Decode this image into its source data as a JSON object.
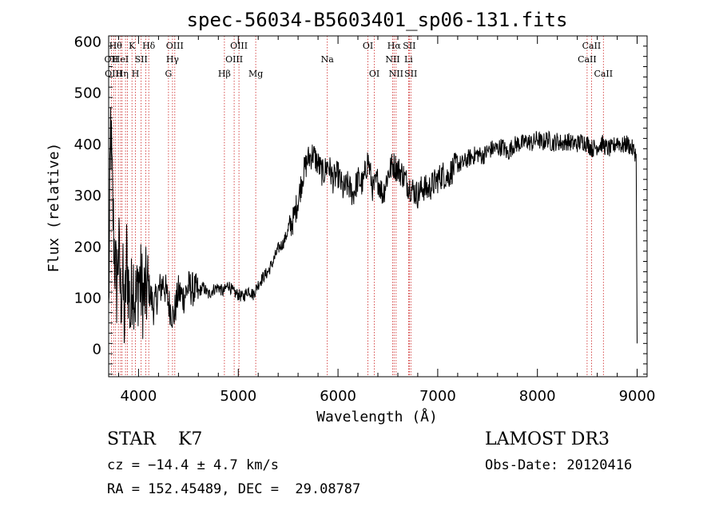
{
  "chart_data": {
    "type": "line",
    "title": "spec-56034-B5603401_sp06-131.fits",
    "xlabel": "Wavelength (Å)",
    "ylabel": "Flux (relative)",
    "xlim": [
      3700,
      9100
    ],
    "ylim": [
      -55,
      610
    ],
    "xticks": [
      4000,
      5000,
      6000,
      7000,
      8000,
      9000
    ],
    "yticks": [
      0,
      100,
      200,
      300,
      400,
      500,
      600
    ],
    "series": [
      {
        "name": "flux",
        "x": [
          3700,
          3720,
          3740,
          3760,
          3780,
          3800,
          3820,
          3840,
          3860,
          3880,
          3900,
          3920,
          3940,
          3960,
          3980,
          4000,
          4050,
          4100,
          4150,
          4200,
          4250,
          4300,
          4350,
          4400,
          4450,
          4500,
          4550,
          4600,
          4650,
          4700,
          4750,
          4800,
          4850,
          4900,
          4950,
          5000,
          5050,
          5100,
          5150,
          5200,
          5250,
          5300,
          5350,
          5400,
          5450,
          5500,
          5550,
          5600,
          5650,
          5700,
          5750,
          5800,
          5850,
          5900,
          5950,
          6000,
          6050,
          6100,
          6150,
          6200,
          6250,
          6300,
          6350,
          6400,
          6450,
          6500,
          6550,
          6600,
          6650,
          6700,
          6750,
          6800,
          6850,
          6900,
          6950,
          7000,
          7050,
          7100,
          7150,
          7200,
          7250,
          7300,
          7350,
          7400,
          7450,
          7500,
          7550,
          7600,
          7650,
          7700,
          7750,
          7800,
          7850,
          7900,
          7950,
          8000,
          8050,
          8100,
          8150,
          8200,
          8250,
          8300,
          8350,
          8400,
          8450,
          8500,
          8550,
          8600,
          8650,
          8700,
          8750,
          8800,
          8850,
          8900,
          8950,
          8990,
          9000
        ],
        "y": [
          60,
          440,
          280,
          180,
          120,
          200,
          100,
          140,
          40,
          180,
          120,
          60,
          150,
          110,
          90,
          140,
          100,
          120,
          80,
          110,
          130,
          90,
          60,
          110,
          100,
          120,
          115,
          110,
          120,
          105,
          115,
          120,
          110,
          125,
          110,
          105,
          100,
          115,
          105,
          125,
          140,
          150,
          170,
          195,
          205,
          230,
          250,
          290,
          340,
          370,
          380,
          360,
          340,
          360,
          330,
          340,
          310,
          320,
          300,
          330,
          320,
          370,
          310,
          330,
          300,
          340,
          360,
          350,
          340,
          320,
          310,
          300,
          315,
          310,
          320,
          330,
          340,
          335,
          350,
          360,
          360,
          370,
          375,
          380,
          375,
          385,
          390,
          390,
          395,
          380,
          395,
          400,
          400,
          405,
          400,
          410,
          400,
          410,
          400,
          405,
          400,
          405,
          400,
          400,
          405,
          400,
          390,
          395,
          400,
          390,
          390,
          405,
          395,
          400,
          390,
          380,
          10
        ]
      }
    ],
    "lines": [
      {
        "x": 3727,
        "label": "OII",
        "row": 1
      },
      {
        "x": 3750,
        "label": "OIII",
        "row": 2
      },
      {
        "x": 3770,
        "label": "Hθ",
        "row": 0
      },
      {
        "x": 3798,
        "label": "",
        "row": 0
      },
      {
        "x": 3820,
        "label": "HeI",
        "row": 1
      },
      {
        "x": 3835,
        "label": "Hη",
        "row": 2
      },
      {
        "x": 3869,
        "label": "",
        "row": 0
      },
      {
        "x": 3889,
        "label": "",
        "row": 0
      },
      {
        "x": 3934,
        "label": "K",
        "row": 0
      },
      {
        "x": 3969,
        "label": "H",
        "row": 2
      },
      {
        "x": 4026,
        "label": "SII",
        "row": 1
      },
      {
        "x": 4072,
        "label": "",
        "row": 0
      },
      {
        "x": 4102,
        "label": "Hδ",
        "row": 0
      },
      {
        "x": 4300,
        "label": "G",
        "row": 2
      },
      {
        "x": 4340,
        "label": "Hγ",
        "row": 1
      },
      {
        "x": 4363,
        "label": "OIII",
        "row": 0
      },
      {
        "x": 4861,
        "label": "Hβ",
        "row": 2
      },
      {
        "x": 4959,
        "label": "OIII",
        "row": 1
      },
      {
        "x": 5007,
        "label": "OIII",
        "row": 0
      },
      {
        "x": 5175,
        "label": "Mg",
        "row": 2
      },
      {
        "x": 5893,
        "label": "Na",
        "row": 1
      },
      {
        "x": 6300,
        "label": "OI",
        "row": 0
      },
      {
        "x": 6364,
        "label": "OI",
        "row": 2
      },
      {
        "x": 6548,
        "label": "NII",
        "row": 1
      },
      {
        "x": 6563,
        "label": "Hα",
        "row": 0
      },
      {
        "x": 6583,
        "label": "NII",
        "row": 2
      },
      {
        "x": 6708,
        "label": "Li",
        "row": 1
      },
      {
        "x": 6716,
        "label": "SII",
        "row": 0
      },
      {
        "x": 6731,
        "label": "SII",
        "row": 2
      },
      {
        "x": 8498,
        "label": "CaII",
        "row": 1
      },
      {
        "x": 8542,
        "label": "CaII",
        "row": 0
      },
      {
        "x": 8662,
        "label": "CaII",
        "row": 2
      }
    ]
  },
  "info": {
    "classification": "STAR    K7",
    "survey": "LAMOST DR3",
    "cz": "cz = −14.4 ± 4.7 km/s",
    "obs_date": "Obs-Date: 20120416",
    "coords": "RA = 152.45489, DEC =  29.08787"
  },
  "colors": {
    "spectrum": "#000000",
    "line_marker": "#cc2222",
    "axes": "#000000"
  }
}
